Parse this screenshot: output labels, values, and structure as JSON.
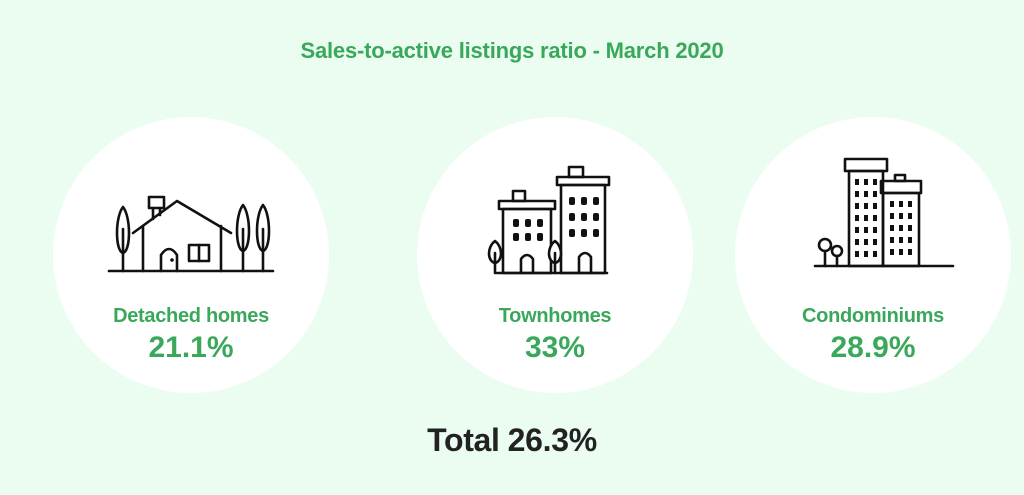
{
  "chart_data": {
    "type": "table",
    "title": "Sales-to-active listings ratio - March 2020",
    "categories": [
      "Detached homes",
      "Townhomes",
      "Condominiums"
    ],
    "values_display": [
      "21.1%",
      "33%",
      "28.9%"
    ],
    "values": [
      21.1,
      33,
      28.9
    ],
    "unit": "%",
    "total_label": "Total",
    "total_display": "26.3%",
    "total": 26.3
  },
  "icons": [
    "detached-house-icon",
    "townhouse-buildings-icon",
    "condo-towers-icon"
  ],
  "colors": {
    "background": "#ebfcf1",
    "accent": "#3aa85a",
    "text": "#222222",
    "card": "#ffffff"
  }
}
